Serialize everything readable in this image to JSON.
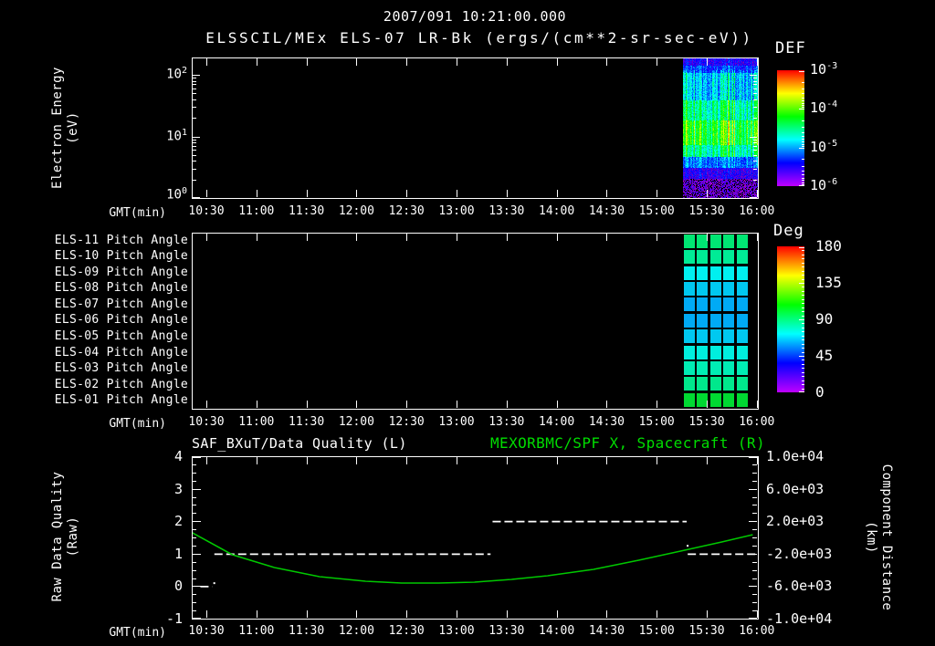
{
  "header": {
    "title_line1": "2007/091 10:21:00.000",
    "title_line2": "ELSSCIL/MEx ELS-07 LR-Bk  (ergs/(cm**2-sr-sec-eV))"
  },
  "colors": {
    "background": "#000000",
    "text": "#ffffff",
    "green_title": "#00dd00",
    "green_series": "#00c800",
    "quality_series": "#ffffff"
  },
  "time_axis": {
    "label": "GMT(min)",
    "start": "10:21",
    "end": "16:00",
    "major_step_min": 30,
    "minor_step_min": 2.5,
    "ticks": [
      {
        "label": "10:30",
        "hour": 10.5
      },
      {
        "label": "11:00",
        "hour": 11.0
      },
      {
        "label": "11:30",
        "hour": 11.5
      },
      {
        "label": "12:00",
        "hour": 12.0
      },
      {
        "label": "12:30",
        "hour": 12.5
      },
      {
        "label": "13:00",
        "hour": 13.0
      },
      {
        "label": "13:30",
        "hour": 13.5
      },
      {
        "label": "14:00",
        "hour": 14.0
      },
      {
        "label": "14:30",
        "hour": 14.5
      },
      {
        "label": "15:00",
        "hour": 15.0
      },
      {
        "label": "15:30",
        "hour": 15.5
      },
      {
        "label": "16:00",
        "hour": 16.0
      }
    ]
  },
  "spectrogram_panel": {
    "ylabel_line1": "Electron Energy",
    "ylabel_line2": "(eV)",
    "ytick_exponents": [
      2,
      1,
      0
    ],
    "colorbar_title": "DEF",
    "colorbar_exponents": [
      -3,
      -4,
      -5,
      -6
    ]
  },
  "pitch_panel": {
    "colorbar_title": "Deg",
    "colorbar_ticks": [
      "180",
      "135",
      "90",
      "45",
      "0"
    ]
  },
  "quality_panel": {
    "title_left": "SAF_BXuT/Data Quality (L)",
    "title_right": "MEXORBMC/SPF X, Spacecraft (R)",
    "ylabel_left_line1": "Raw Data Quality",
    "ylabel_left_line2": "(Raw)",
    "ylabel_right_line1": "Component Distance",
    "ylabel_right_line2": "(km)",
    "yticks_left": [
      "4",
      "3",
      "2",
      "1",
      "0",
      "-1"
    ],
    "yticks_right": [
      "1.0e+04",
      "6.0e+03",
      "2.0e+03",
      "-2.0e+03",
      "-6.0e+03",
      "-1.0e+04"
    ]
  },
  "chart_data": [
    {
      "id": "electron_energy_spectrogram",
      "type": "heatmap",
      "title": "ELSSCIL/MEx ELS-07 LR-Bk",
      "units": "ergs/(cm**2-sr-sec-eV)",
      "xlabel": "GMT(min)",
      "ylabel": "Electron Energy (eV)",
      "y_scale": "log",
      "y_range_eV": [
        1,
        190
      ],
      "color_scale_range": [
        "1e-6",
        "1e-3"
      ],
      "data_window_hours": [
        15.26,
        16.0
      ],
      "seed": 42,
      "bands_depth_value": [
        [
          0.0,
          0.05,
          0.18
        ],
        [
          0.05,
          0.1,
          0.25
        ],
        [
          0.1,
          0.3,
          0.35
        ],
        [
          0.3,
          0.44,
          0.47
        ],
        [
          0.44,
          0.62,
          0.58
        ],
        [
          0.62,
          0.7,
          0.46
        ],
        [
          0.7,
          0.78,
          0.3
        ],
        [
          0.78,
          0.86,
          0.17
        ],
        [
          0.86,
          1.0,
          0.1
        ]
      ],
      "streak_fraction": 0.18,
      "streak_boost": 0.13,
      "speckle_below_depth": 0.86,
      "speckle_prob": 0.28
    },
    {
      "id": "pitch_angle_grid",
      "type": "heatmap",
      "units": "deg",
      "data_window_hours": [
        15.26,
        15.91
      ],
      "columns": 5,
      "rows": [
        {
          "label": "ELS-11 Pitch Angle",
          "value_deg": 90,
          "color": "#00e673"
        },
        {
          "label": "ELS-10 Pitch Angle",
          "value_deg": 85,
          "color": "#00eb96"
        },
        {
          "label": "ELS-09 Pitch Angle",
          "value_deg": 72,
          "color": "#00f0f0"
        },
        {
          "label": "ELS-08 Pitch Angle",
          "value_deg": 66,
          "color": "#00c8f0"
        },
        {
          "label": "ELS-07 Pitch Angle",
          "value_deg": 61,
          "color": "#00aaf5"
        },
        {
          "label": "ELS-06 Pitch Angle",
          "value_deg": 61,
          "color": "#00aaf5"
        },
        {
          "label": "ELS-05 Pitch Angle",
          "value_deg": 66,
          "color": "#00c8f0"
        },
        {
          "label": "ELS-04 Pitch Angle",
          "value_deg": 76,
          "color": "#00eede"
        },
        {
          "label": "ELS-03 Pitch Angle",
          "value_deg": 80,
          "color": "#00edb4"
        },
        {
          "label": "ELS-02 Pitch Angle",
          "value_deg": 86,
          "color": "#00e88c"
        },
        {
          "label": "ELS-01 Pitch Angle",
          "value_deg": 100,
          "color": "#00d932"
        }
      ],
      "colorbar_range_deg": [
        0,
        180
      ]
    },
    {
      "id": "quality_and_distance",
      "type": "line",
      "x_unit": "decimal_hour",
      "ylim_left": [
        -1,
        4
      ],
      "ylim_right": [
        -10000,
        10000
      ],
      "series": [
        {
          "name": "SAF_BXuT/Data Quality (L)",
          "axis": "left",
          "style": "dashed",
          "segments": [
            [
              10.44,
              10.56,
              0
            ],
            [
              10.58,
              13.34,
              1
            ],
            [
              13.36,
              15.3,
              2
            ],
            [
              15.31,
              16.0,
              1
            ]
          ],
          "stray_dots": [
            [
              10.57,
              0.12
            ],
            [
              15.3,
              1.27
            ]
          ]
        },
        {
          "name": "MEXORBMC/SPF X, Spacecraft (R)",
          "axis": "right",
          "style": "solid",
          "points": [
            [
              10.36,
              560
            ],
            [
              10.76,
              -2135
            ],
            [
              11.18,
              -3700
            ],
            [
              11.63,
              -4830
            ],
            [
              12.09,
              -5390
            ],
            [
              12.45,
              -5618
            ],
            [
              12.82,
              -5618
            ],
            [
              13.18,
              -5505
            ],
            [
              13.55,
              -5170
            ],
            [
              13.91,
              -4720
            ],
            [
              14.37,
              -3930
            ],
            [
              14.82,
              -2810
            ],
            [
              15.28,
              -1570
            ],
            [
              15.65,
              -560
            ],
            [
              15.96,
              340
            ]
          ]
        }
      ]
    }
  ]
}
